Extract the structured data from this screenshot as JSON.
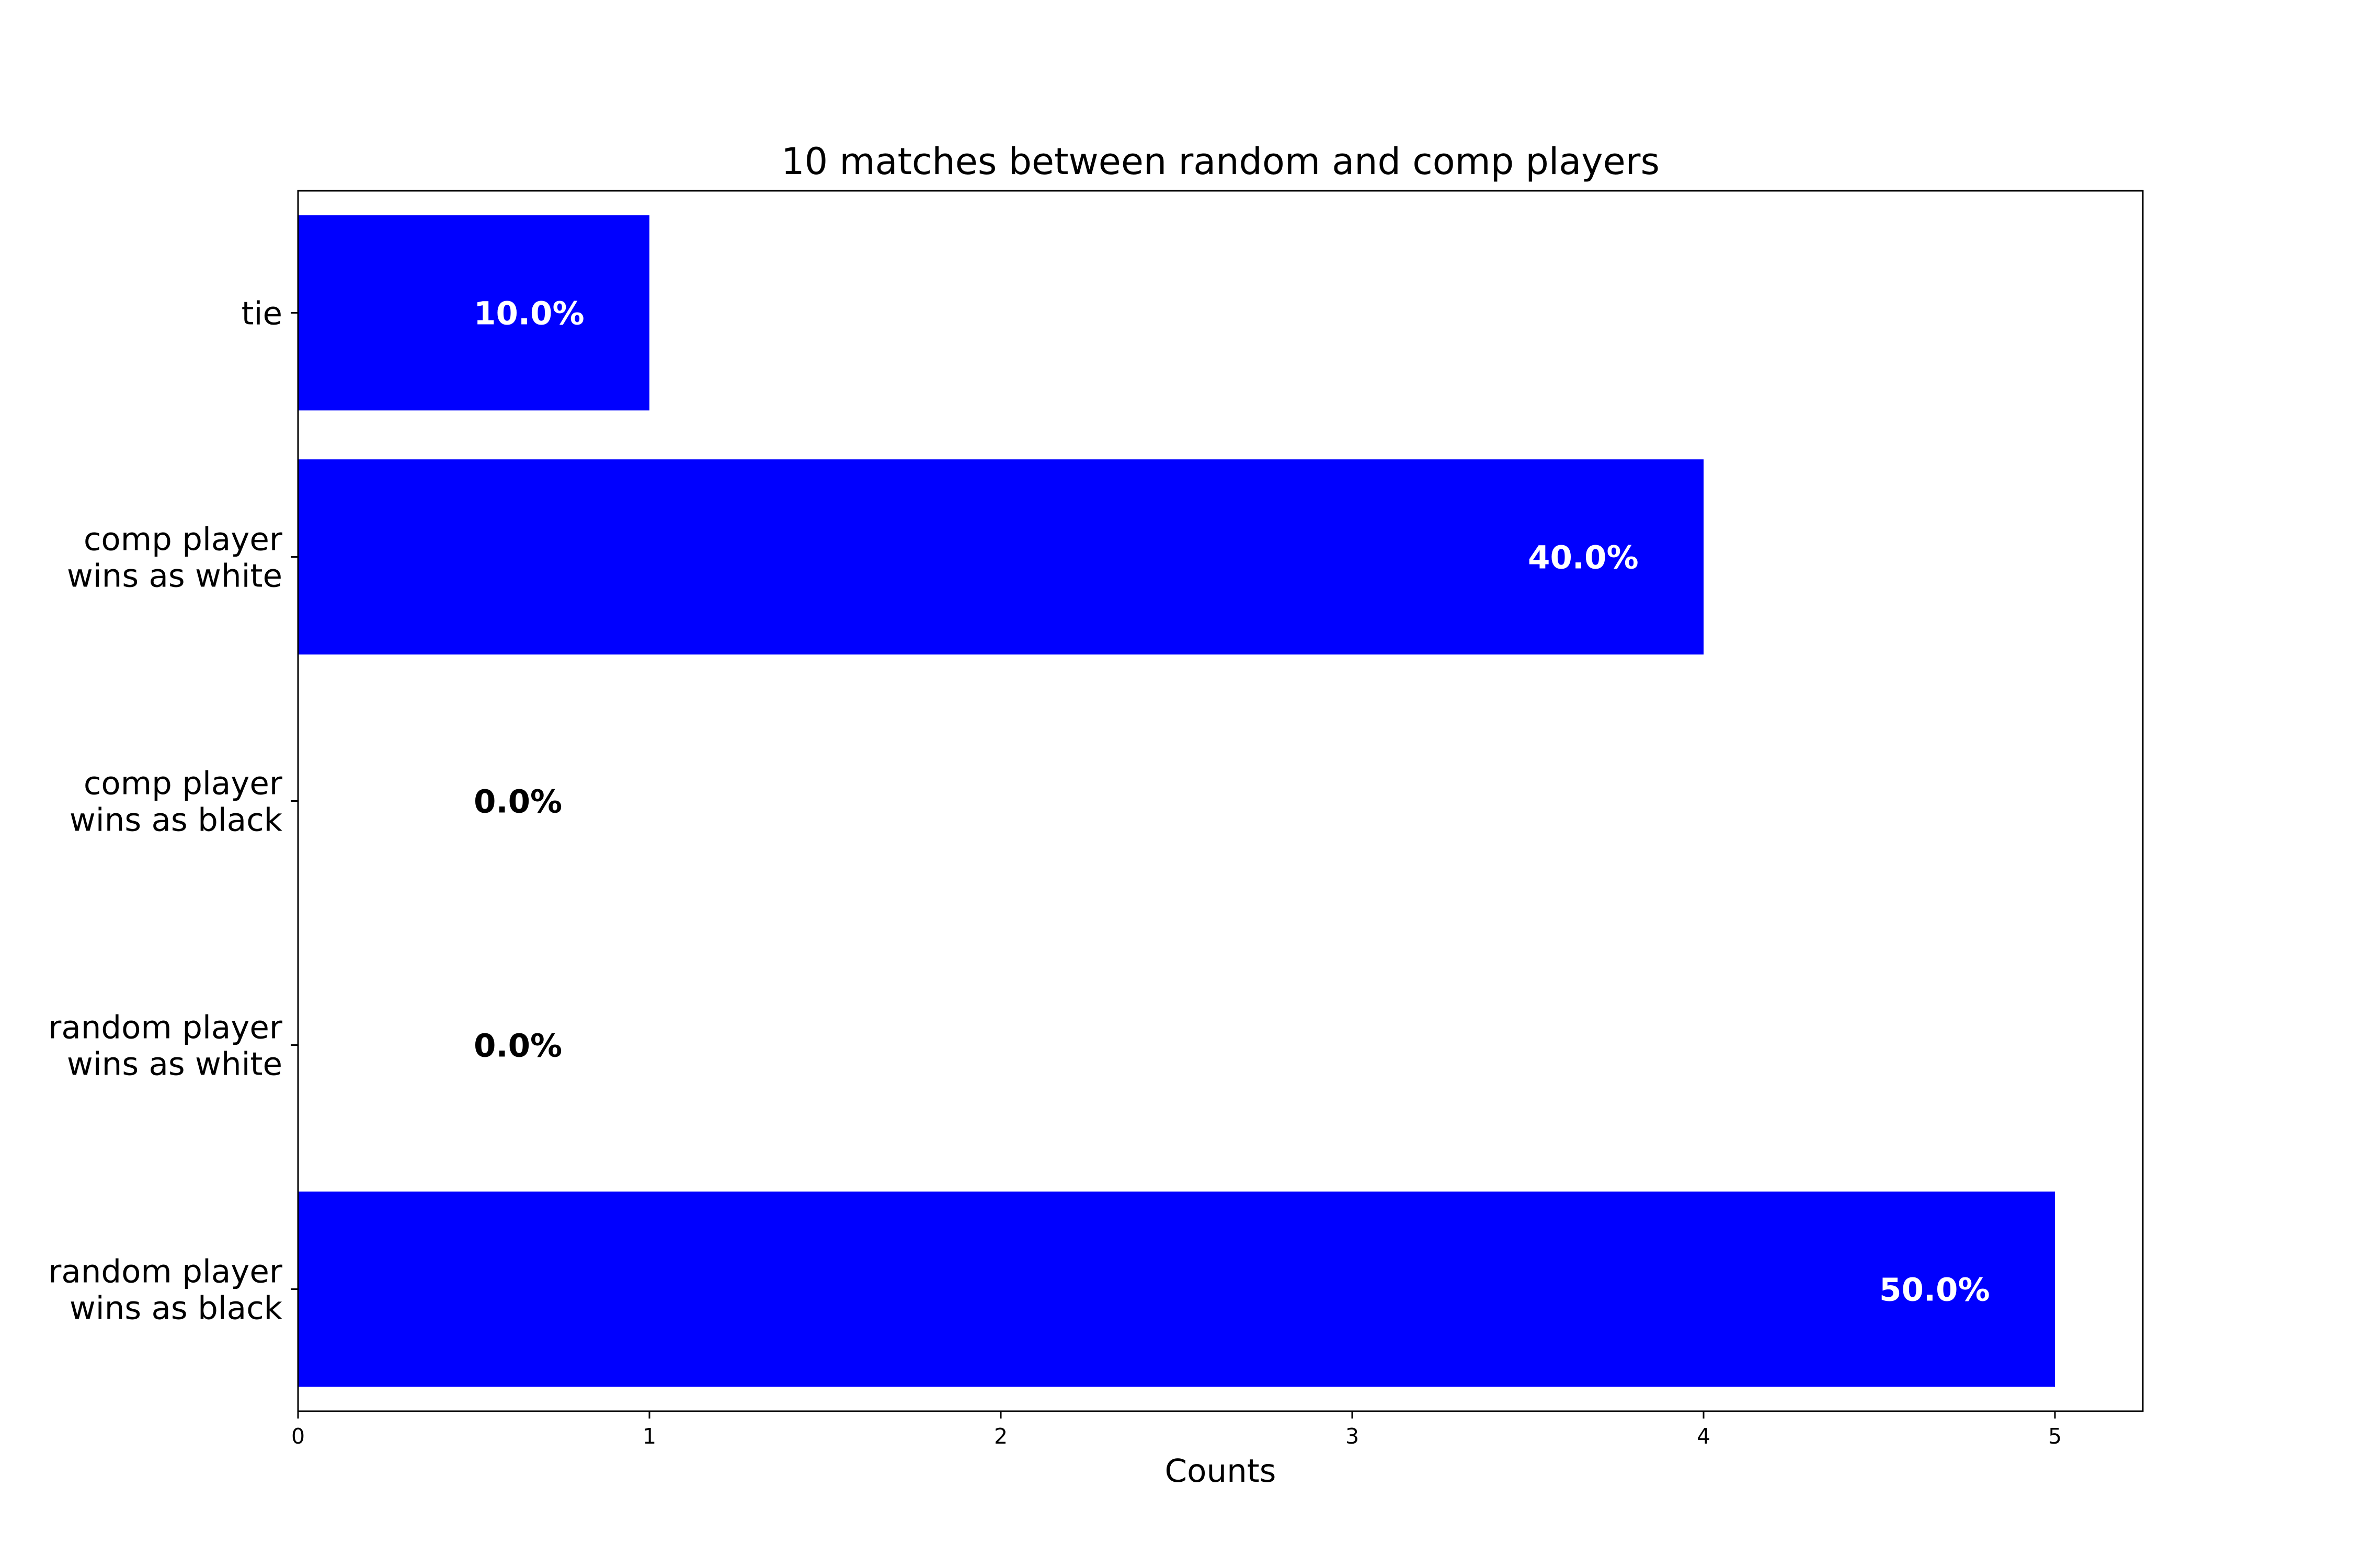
{
  "chart_data": {
    "type": "bar",
    "orientation": "horizontal",
    "title": "10 matches between random and comp players",
    "xlabel": "Counts",
    "ylabel": "",
    "categories": [
      [
        "tie"
      ],
      [
        "comp player",
        "wins as white"
      ],
      [
        "comp player",
        "wins as black"
      ],
      [
        "random player",
        "wins as white"
      ],
      [
        "random player",
        "wins as black"
      ]
    ],
    "values": [
      1,
      4,
      0,
      0,
      5
    ],
    "data_labels": [
      "10.0%",
      "40.0%",
      "0.0%",
      "0.0%",
      "50.0%"
    ],
    "xlim": [
      0,
      5.25
    ],
    "xticks": [
      "0",
      "1",
      "2",
      "3",
      "4",
      "5"
    ],
    "bar_color": "#0000ff",
    "label_color_on_bar": "#ffffff",
    "label_color_off_bar": "#000000",
    "grid": false,
    "legend": "none"
  }
}
